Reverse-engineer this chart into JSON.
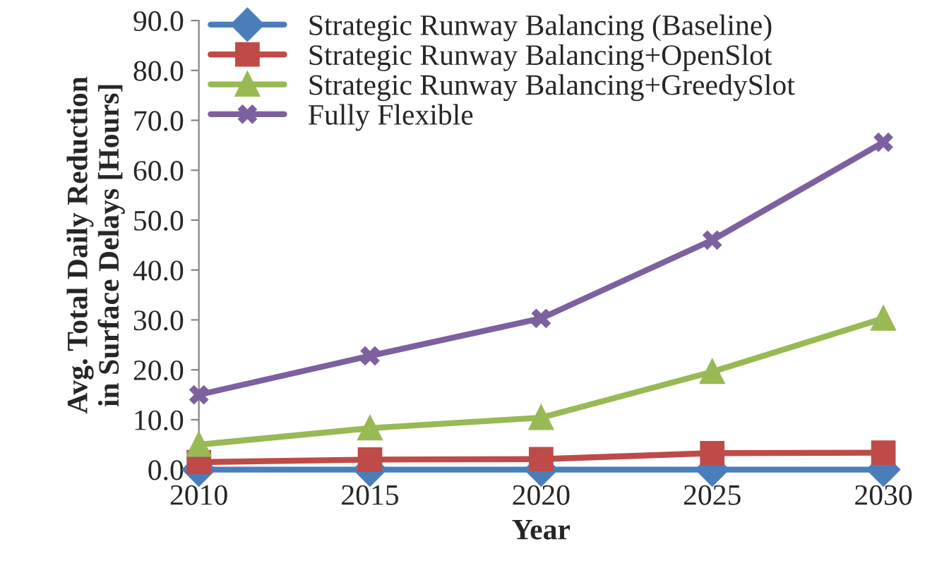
{
  "chart_data": {
    "type": "line",
    "xlabel": "Year",
    "ylabel": "Avg. Total Daily Reduction\nin Surface Delays [Hours]",
    "categories": [
      "2010",
      "2015",
      "2020",
      "2025",
      "2030"
    ],
    "series": [
      {
        "name": "Strategic Runway Balancing (Baseline)",
        "color": "#4a7ebb",
        "marker": "diamond",
        "values": [
          0,
          0,
          0,
          0,
          0
        ]
      },
      {
        "name": "Strategic Runway Balancing+OpenSlot",
        "color": "#be4b48",
        "marker": "square",
        "values": [
          1.5,
          2.0,
          2.1,
          3.3,
          3.4
        ]
      },
      {
        "name": "Strategic Runway Balancing+GreedySlot",
        "color": "#98b954",
        "marker": "triangle",
        "values": [
          5.0,
          8.3,
          10.4,
          19.6,
          30.3
        ]
      },
      {
        "name": "Fully Flexible",
        "color": "#7d60a0",
        "marker": "cross",
        "values": [
          15.0,
          22.8,
          30.3,
          46.0,
          65.6
        ]
      }
    ],
    "ylim": [
      0,
      90
    ],
    "yticks": [
      {
        "value": 0,
        "label": "0.0"
      },
      {
        "value": 10,
        "label": "10.0"
      },
      {
        "value": 20,
        "label": "20.0"
      },
      {
        "value": 30,
        "label": "30.0"
      },
      {
        "value": 40,
        "label": "40.0"
      },
      {
        "value": 50,
        "label": "50.0"
      },
      {
        "value": 60,
        "label": "60.0"
      },
      {
        "value": 70,
        "label": "70.0"
      },
      {
        "value": 80,
        "label": "80.0"
      },
      {
        "value": 90,
        "label": "90.0"
      }
    ],
    "grid": false,
    "legend": "top left",
    "line_style": "solid"
  }
}
